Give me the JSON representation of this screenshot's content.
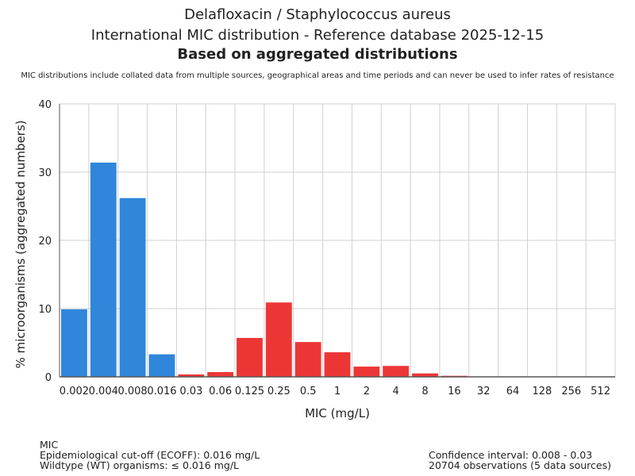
{
  "title": "Delafloxacin / Staphylococcus aureus",
  "subtitle": "International MIC distribution - Reference database 2025-12-15",
  "subtitle2": "Based on aggregated distributions",
  "disclaimer": "MIC distributions include collated data from multiple sources, geographical areas and time periods and can never be used to infer rates of resistance",
  "footer": {
    "left": [
      "MIC",
      "Epidemiological cut-off (ECOFF): 0.016 mg/L",
      "Wildtype (WT) organisms: ≤ 0.016 mg/L"
    ],
    "right": [
      "Confidence interval: 0.008 - 0.03",
      "20704 observations (5 data sources)"
    ]
  },
  "colors": {
    "wt": "#2f86db",
    "nonwt": "#ec3636",
    "grid": "#d0d0d0",
    "axis": "#555555"
  },
  "chart_data": {
    "type": "bar",
    "xlabel": "MIC (mg/L)",
    "ylabel": "% microorganisms (aggregated numbers)",
    "ylim": [
      0,
      40
    ],
    "yticks": [
      0,
      10,
      20,
      30,
      40
    ],
    "grid": true,
    "categories": [
      "0.002",
      "0.004",
      "0.008",
      "0.016",
      "0.03",
      "0.06",
      "0.125",
      "0.25",
      "0.5",
      "1",
      "2",
      "4",
      "8",
      "16",
      "32",
      "64",
      "128",
      "256",
      "512"
    ],
    "values": [
      9.9,
      31.4,
      26.2,
      3.3,
      0.35,
      0.7,
      5.7,
      10.9,
      5.1,
      3.6,
      1.5,
      1.6,
      0.5,
      0.15,
      0,
      0,
      0,
      0,
      0
    ],
    "wildtype_through_index": 3
  }
}
